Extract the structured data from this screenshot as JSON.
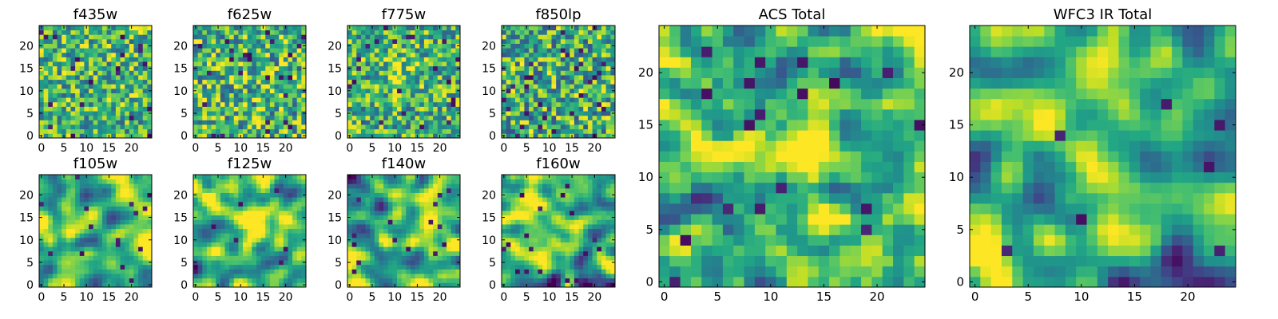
{
  "colors": {
    "colormap": "viridis",
    "background": "#ffffff",
    "axis": "#000000"
  },
  "chart_data": [
    {
      "type": "heatmap",
      "title": "f435w",
      "xlabel": "",
      "ylabel": "",
      "size": 25,
      "xticks": [
        0,
        5,
        10,
        15,
        20
      ],
      "yticks": [
        0,
        5,
        10,
        15,
        20
      ],
      "xlim": [
        0,
        25
      ],
      "ylim": [
        0,
        25
      ],
      "colormap": "viridis",
      "value_range": [
        0,
        1
      ],
      "pattern": "noise",
      "seed": 11,
      "smooth": 0,
      "mean": 0.66,
      "spread": 0.2,
      "dark_rate": 0.03,
      "peak": null
    },
    {
      "type": "heatmap",
      "title": "f625w",
      "xlabel": "",
      "ylabel": "",
      "size": 25,
      "xticks": [
        0,
        5,
        10,
        15,
        20
      ],
      "yticks": [
        0,
        5,
        10,
        15,
        20
      ],
      "xlim": [
        0,
        25
      ],
      "ylim": [
        0,
        25
      ],
      "colormap": "viridis",
      "value_range": [
        0,
        1
      ],
      "pattern": "noise",
      "seed": 23,
      "smooth": 0,
      "mean": 0.66,
      "spread": 0.22,
      "dark_rate": 0.04,
      "peak": null
    },
    {
      "type": "heatmap",
      "title": "f775w",
      "xlabel": "",
      "ylabel": "",
      "size": 25,
      "xticks": [
        0,
        5,
        10,
        15,
        20
      ],
      "yticks": [
        0,
        5,
        10,
        15,
        20
      ],
      "xlim": [
        0,
        25
      ],
      "ylim": [
        0,
        25
      ],
      "colormap": "viridis",
      "value_range": [
        0,
        1
      ],
      "pattern": "noise",
      "seed": 37,
      "smooth": 0,
      "mean": 0.64,
      "spread": 0.2,
      "dark_rate": 0.03,
      "peak": [
        11,
        13
      ]
    },
    {
      "type": "heatmap",
      "title": "f850lp",
      "xlabel": "",
      "ylabel": "",
      "size": 25,
      "xticks": [
        0,
        5,
        10,
        15,
        20
      ],
      "yticks": [
        0,
        5,
        10,
        15,
        20
      ],
      "xlim": [
        0,
        25
      ],
      "ylim": [
        0,
        25
      ],
      "colormap": "viridis",
      "value_range": [
        0,
        1
      ],
      "pattern": "noise",
      "seed": 51,
      "smooth": 0,
      "mean": 0.62,
      "spread": 0.22,
      "dark_rate": 0.05,
      "peak": null
    },
    {
      "type": "heatmap",
      "title": "f105w",
      "xlabel": "",
      "ylabel": "",
      "size": 25,
      "xticks": [
        0,
        5,
        10,
        15,
        20
      ],
      "yticks": [
        0,
        5,
        10,
        15,
        20
      ],
      "xlim": [
        0,
        25
      ],
      "ylim": [
        0,
        25
      ],
      "colormap": "viridis",
      "value_range": [
        0,
        1
      ],
      "pattern": "smooth",
      "seed": 67,
      "smooth": 2,
      "mean": 0.65,
      "spread": 0.2,
      "dark_rate": 0.015,
      "peak": [
        15,
        11
      ]
    },
    {
      "type": "heatmap",
      "title": "f125w",
      "xlabel": "",
      "ylabel": "",
      "size": 25,
      "xticks": [
        0,
        5,
        10,
        15,
        20
      ],
      "yticks": [
        0,
        5,
        10,
        15,
        20
      ],
      "xlim": [
        0,
        25
      ],
      "ylim": [
        0,
        25
      ],
      "colormap": "viridis",
      "value_range": [
        0,
        1
      ],
      "pattern": "smooth",
      "seed": 79,
      "smooth": 2,
      "mean": 0.66,
      "spread": 0.2,
      "dark_rate": 0.015,
      "peak": [
        12,
        12
      ]
    },
    {
      "type": "heatmap",
      "title": "f140w",
      "xlabel": "",
      "ylabel": "",
      "size": 25,
      "xticks": [
        0,
        5,
        10,
        15,
        20
      ],
      "yticks": [
        0,
        5,
        10,
        15,
        20
      ],
      "xlim": [
        0,
        25
      ],
      "ylim": [
        0,
        25
      ],
      "colormap": "viridis",
      "value_range": [
        0,
        1
      ],
      "pattern": "smooth",
      "seed": 97,
      "smooth": 2,
      "mean": 0.64,
      "spread": 0.22,
      "dark_rate": 0.02,
      "peak": [
        12,
        13
      ]
    },
    {
      "type": "heatmap",
      "title": "f160w",
      "xlabel": "",
      "ylabel": "",
      "size": 25,
      "xticks": [
        0,
        5,
        10,
        15,
        20
      ],
      "yticks": [
        0,
        5,
        10,
        15,
        20
      ],
      "xlim": [
        0,
        25
      ],
      "ylim": [
        0,
        25
      ],
      "colormap": "viridis",
      "value_range": [
        0,
        1
      ],
      "pattern": "smooth",
      "seed": 113,
      "smooth": 2,
      "mean": 0.64,
      "spread": 0.22,
      "dark_rate": 0.02,
      "peak": [
        11,
        10
      ]
    },
    {
      "type": "heatmap",
      "title": "ACS Total",
      "xlabel": "",
      "ylabel": "",
      "size": 25,
      "xticks": [
        0,
        5,
        10,
        15,
        20
      ],
      "yticks": [
        0,
        5,
        10,
        15,
        20
      ],
      "xlim": [
        0,
        25
      ],
      "ylim": [
        0,
        25
      ],
      "colormap": "viridis",
      "value_range": [
        0,
        1
      ],
      "pattern": "smooth",
      "seed": 131,
      "smooth": 1,
      "mean": 0.66,
      "spread": 0.18,
      "dark_rate": 0.02,
      "peak": [
        11,
        12
      ]
    },
    {
      "type": "heatmap",
      "title": "WFC3 IR Total",
      "xlabel": "",
      "ylabel": "",
      "size": 25,
      "xticks": [
        0,
        5,
        10,
        15,
        20
      ],
      "yticks": [
        0,
        5,
        10,
        15,
        20
      ],
      "xlim": [
        0,
        25
      ],
      "ylim": [
        0,
        25
      ],
      "colormap": "viridis",
      "value_range": [
        0,
        1
      ],
      "pattern": "smooth",
      "seed": 149,
      "smooth": 2,
      "mean": 0.62,
      "spread": 0.2,
      "dark_rate": 0.015,
      "peak": [
        12,
        13
      ]
    }
  ]
}
